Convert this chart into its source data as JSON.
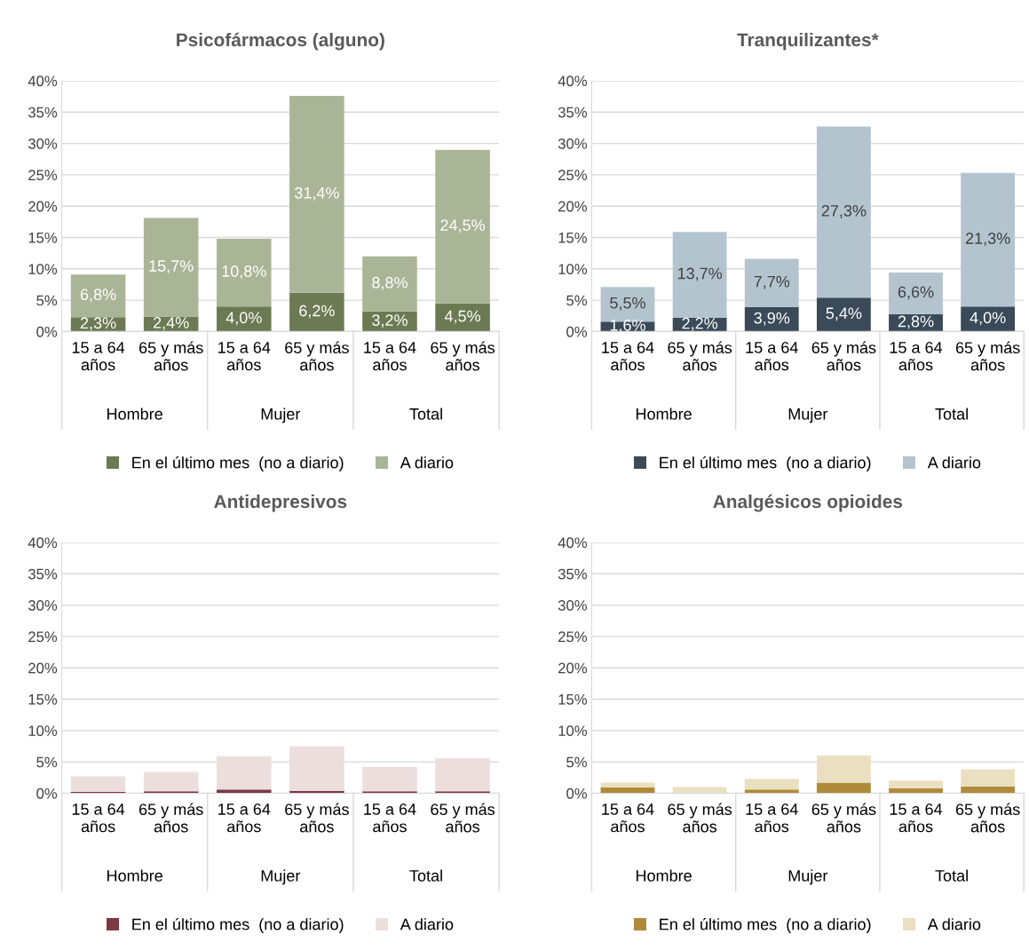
{
  "chart_data": [
    {
      "type": "bar",
      "title": "Psicofármacos (alguno)",
      "stacked": true,
      "categories": [
        "15 a 64\naños",
        "65 y más\naños",
        "15 a 64\naños",
        "65 y más\naños",
        "15 a 64\naños",
        "65 y más\naños"
      ],
      "series": [
        {
          "name": "En el último mes  (no a diario)",
          "color": "#6b7a52",
          "values": [
            2.3,
            2.4,
            4.0,
            6.2,
            3.2,
            4.5
          ],
          "value_labels": [
            "2,3%",
            "2,4%",
            "4,0%",
            "6,2%",
            "3,2%",
            "4,5%"
          ]
        },
        {
          "name": "A diario",
          "color": "#aab597",
          "values": [
            6.8,
            15.7,
            10.8,
            31.4,
            8.8,
            24.5
          ],
          "value_labels": [
            "6,8%",
            "15,7%",
            "10,8%",
            "31,4%",
            "8,8%",
            "24,5%"
          ]
        }
      ],
      "ylim": [
        0,
        40
      ],
      "yticks": [
        {
          "value": 0,
          "label": "0%"
        },
        {
          "value": 5,
          "label": "5%"
        },
        {
          "value": 10,
          "label": "10%"
        },
        {
          "value": 15,
          "label": "15%"
        },
        {
          "value": 20,
          "label": "20%"
        },
        {
          "value": 25,
          "label": "25%"
        },
        {
          "value": 30,
          "label": "30%"
        },
        {
          "value": 35,
          "label": "35%"
        },
        {
          "value": 40,
          "label": "40%"
        }
      ],
      "grid": "y",
      "legend": "bottom",
      "annotations": [
        "Hombre",
        "Mujer",
        "Total"
      ]
    },
    {
      "type": "bar",
      "title": "Tranquilizantes*",
      "stacked": true,
      "categories": [
        "15 a 64\naños",
        "65 y más\naños",
        "15 a 64\naños",
        "65 y más\naños",
        "15 a 64\naños",
        "65 y más\naños"
      ],
      "series": [
        {
          "name": "En el último mes  (no a diario)",
          "color": "#3a4a58",
          "values": [
            1.6,
            2.2,
            3.9,
            5.4,
            2.8,
            4.0
          ],
          "value_labels": [
            "1,6%",
            "2,2%",
            "3,9%",
            "5,4%",
            "2,8%",
            "4,0%"
          ]
        },
        {
          "name": "A diario",
          "color": "#b4c4cf",
          "values": [
            5.5,
            13.7,
            7.7,
            27.3,
            6.6,
            21.3
          ],
          "value_labels": [
            "5,5%",
            "13,7%",
            "7,7%",
            "27,3%",
            "6,6%",
            "21,3%"
          ]
        }
      ],
      "ylim": [
        0,
        40
      ],
      "yticks": [
        {
          "value": 0,
          "label": "0%"
        },
        {
          "value": 5,
          "label": "5%"
        },
        {
          "value": 10,
          "label": "10%"
        },
        {
          "value": 15,
          "label": "15%"
        },
        {
          "value": 20,
          "label": "20%"
        },
        {
          "value": 25,
          "label": "25%"
        },
        {
          "value": 30,
          "label": "30%"
        },
        {
          "value": 35,
          "label": "35%"
        },
        {
          "value": 40,
          "label": "40%"
        }
      ],
      "grid": "y",
      "legend": "bottom",
      "annotations": [
        "Hombre",
        "Mujer",
        "Total"
      ]
    },
    {
      "type": "bar",
      "title": "Antidepresivos",
      "stacked": true,
      "categories": [
        "15 a 64\naños",
        "65 y más\naños",
        "15 a 64\naños",
        "65 y más\naños",
        "15 a 64\naños",
        "65 y más\naños"
      ],
      "series": [
        {
          "name": "En el último mes  (no a diario)",
          "color": "#7b3a45",
          "values": [
            0.2,
            0.3,
            0.6,
            0.4,
            0.3,
            0.3
          ]
        },
        {
          "name": "A diario",
          "color": "#eddede",
          "values": [
            2.5,
            3.1,
            5.3,
            7.1,
            3.9,
            5.3
          ]
        }
      ],
      "ylim": [
        0,
        40
      ],
      "yticks": [
        {
          "value": 0,
          "label": "0%"
        },
        {
          "value": 5,
          "label": "5%"
        },
        {
          "value": 10,
          "label": "10%"
        },
        {
          "value": 15,
          "label": "15%"
        },
        {
          "value": 20,
          "label": "20%"
        },
        {
          "value": 25,
          "label": "25%"
        },
        {
          "value": 30,
          "label": "30%"
        },
        {
          "value": 35,
          "label": "35%"
        },
        {
          "value": 40,
          "label": "40%"
        }
      ],
      "grid": "y",
      "legend": "bottom",
      "annotations": [
        "Hombre",
        "Mujer",
        "Total"
      ]
    },
    {
      "type": "bar",
      "title": "Analgésicos opioides",
      "stacked": true,
      "categories": [
        "15 a 64\naños",
        "65 y más\naños",
        "15 a 64\naños",
        "65 y más\naños",
        "15 a 64\naños",
        "65 y más\naños"
      ],
      "series": [
        {
          "name": "En el último mes  (no a diario)",
          "color": "#b08a3a",
          "values": [
            0.9,
            0.0,
            0.6,
            1.7,
            0.8,
            1.1
          ]
        },
        {
          "name": "A diario",
          "color": "#eadfc0",
          "values": [
            0.8,
            1.0,
            1.7,
            4.3,
            1.2,
            2.7
          ]
        }
      ],
      "ylim": [
        0,
        40
      ],
      "yticks": [
        {
          "value": 0,
          "label": "0%"
        },
        {
          "value": 5,
          "label": "5%"
        },
        {
          "value": 10,
          "label": "10%"
        },
        {
          "value": 15,
          "label": "15%"
        },
        {
          "value": 20,
          "label": "20%"
        },
        {
          "value": 25,
          "label": "25%"
        },
        {
          "value": 30,
          "label": "30%"
        },
        {
          "value": 35,
          "label": "35%"
        },
        {
          "value": 40,
          "label": "40%"
        }
      ],
      "grid": "y",
      "legend": "bottom",
      "annotations": [
        "Hombre",
        "Mujer",
        "Total"
      ]
    }
  ]
}
